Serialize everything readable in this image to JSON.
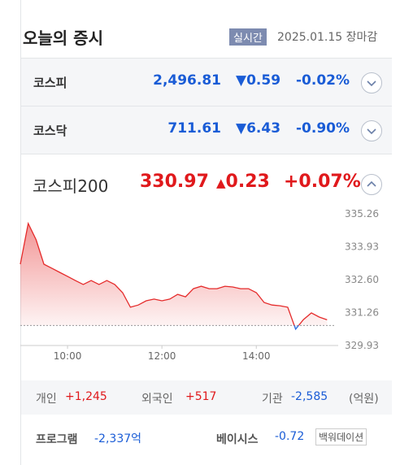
{
  "header": {
    "title": "오늘의 증시",
    "badge": "실시간",
    "date": "2025.01.15 장마감"
  },
  "indices": [
    {
      "name": "코스피",
      "value": "2,496.81",
      "change": "0.59",
      "rate": "-0.02%"
    },
    {
      "name": "코스닥",
      "value": "711.61",
      "change": "6.43",
      "rate": "-0.90%"
    }
  ],
  "featured": {
    "name": "코스피200",
    "value": "330.97",
    "change": "0.23",
    "rate": "+0.07%"
  },
  "chart_data": {
    "type": "line",
    "x": [
      "09:00",
      "09:10",
      "09:20",
      "09:30",
      "09:40",
      "09:50",
      "10:00",
      "10:10",
      "10:20",
      "10:30",
      "10:40",
      "10:50",
      "11:00",
      "11:10",
      "11:20",
      "11:30",
      "11:40",
      "11:50",
      "12:00",
      "12:10",
      "12:20",
      "12:30",
      "12:40",
      "12:50",
      "13:00",
      "13:10",
      "13:20",
      "13:30",
      "13:40",
      "13:50",
      "14:00",
      "14:10",
      "14:20",
      "14:30",
      "14:40",
      "14:50",
      "15:00",
      "15:10",
      "15:20",
      "15:30"
    ],
    "series": [
      {
        "color": "#e52b2b",
        "values": [
          333.22,
          334.87,
          334.21,
          333.22,
          333.06,
          332.89,
          332.73,
          332.56,
          332.4,
          332.56,
          332.4,
          332.56,
          332.4,
          332.07,
          331.48,
          331.57,
          331.74,
          331.81,
          331.74,
          331.81,
          332.0,
          331.9,
          332.23,
          332.33,
          332.23,
          332.23,
          332.33,
          332.3,
          332.23,
          332.23,
          332.07,
          331.67,
          331.57,
          331.54,
          331.48,
          330.59,
          330.98,
          331.25,
          331.08,
          330.97
        ]
      }
    ],
    "below_color": "#2f6fe0",
    "reference_line": 330.74,
    "xlim": [
      "09:00",
      "15:40"
    ],
    "xticks": [
      "10:00",
      "12:00",
      "14:00"
    ],
    "ylim": [
      329.93,
      335.26
    ],
    "yticks": [
      335.26,
      333.93,
      {
        "value": 332.6,
        "label": "332.60"
      },
      331.26,
      329.93
    ]
  },
  "investors": [
    {
      "label": "개인",
      "value": "+1,245"
    },
    {
      "label": "외국인",
      "value": "+517"
    },
    {
      "label": "기관",
      "value": "-2,585"
    }
  ],
  "unit": "(억원)",
  "program": {
    "label": "프로그램",
    "value": "-2,337억"
  },
  "basis": {
    "label": "베이시스",
    "value": "-0.72"
  },
  "basis_button": "백워데이션"
}
